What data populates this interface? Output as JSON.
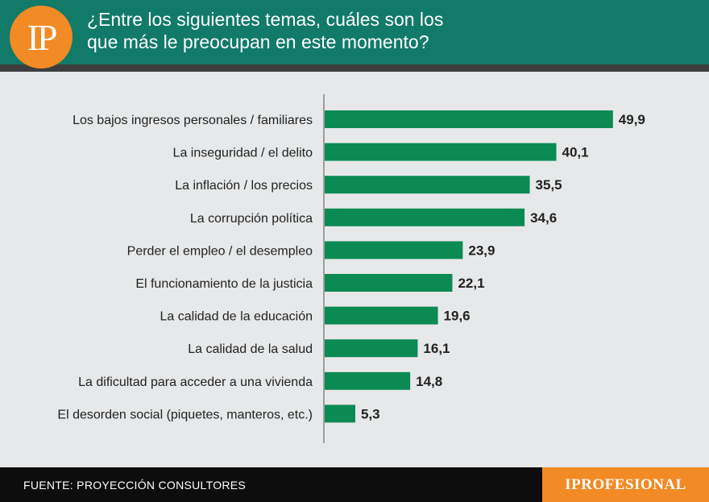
{
  "header": {
    "logo_text": "IP",
    "title": "¿Entre los siguientes temas, cuáles son los\nque más le preocupan en este momento?"
  },
  "footer": {
    "source": "FUENTE: PROYECCIÓN CONSULTORES",
    "brand": "IPROFESIONAL"
  },
  "colors": {
    "header_bg": "#117a68",
    "bar": "#0b8a54",
    "accent": "#f28a25",
    "background": "#e7e8e9"
  },
  "chart_data": {
    "type": "bar",
    "orientation": "horizontal",
    "categories": [
      "Los bajos ingresos personales / familiares",
      "La inseguridad / el delito",
      "La inflación / los precios",
      "La corrupción política",
      "Perder el empleo / el desempleo",
      "El funcionamiento de la justicia",
      "La calidad de la educación",
      "La calidad de la salud",
      "La dificultad para acceder a una vivienda",
      "El desorden social (piquetes, manteros, etc.)"
    ],
    "values": [
      49.9,
      40.1,
      35.5,
      34.6,
      23.9,
      22.1,
      19.6,
      16.1,
      14.8,
      5.3
    ],
    "value_labels": [
      "49,9",
      "40,1",
      "35,5",
      "34,6",
      "23,9",
      "22,1",
      "19,6",
      "16,1",
      "14,8",
      "5,3"
    ],
    "title": "",
    "xlabel": "",
    "ylabel": "",
    "xlim": [
      0,
      55
    ],
    "grid": false,
    "legend": "none"
  }
}
